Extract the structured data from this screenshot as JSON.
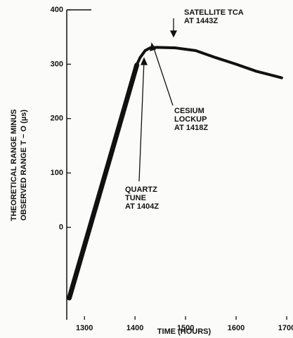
{
  "chart_data": {
    "type": "line",
    "xlabel": "TIME (HOURS)",
    "ylabel": [
      "THEORETICAL RANGE MINUS",
      "OBSERVED RANGE T − O (µs)"
    ],
    "xlim": [
      1265,
      1700
    ],
    "xticks": [
      1300,
      1400,
      1500,
      1600,
      1700
    ],
    "ylim": [
      -170,
      400
    ],
    "yticks": [
      0,
      100,
      200,
      300,
      400
    ],
    "series": [
      {
        "color": "#111111",
        "style": "hatched",
        "x": [
          1270,
          1300,
          1350,
          1404
        ],
        "values": [
          -130,
          -34,
          126,
          300
        ]
      },
      {
        "color": "#111111",
        "style": "solid",
        "x": [
          1404,
          1410,
          1420,
          1430,
          1443,
          1480,
          1520,
          1560,
          1600,
          1640,
          1690
        ],
        "values": [
          300,
          312,
          325,
          330,
          331,
          330,
          325,
          312,
          300,
          287,
          275
        ]
      }
    ],
    "annotations": [
      {
        "lines": [
          "SATELLITE TCA",
          "AT 1443Z"
        ]
      },
      {
        "lines": [
          "CESIUM",
          "LOCKUP",
          "AT 1418Z"
        ]
      },
      {
        "lines": [
          "QUARTZ",
          "TUNE",
          "AT 1404Z"
        ]
      }
    ]
  }
}
